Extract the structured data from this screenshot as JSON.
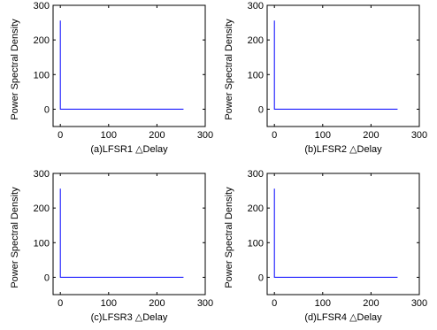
{
  "chart_data": [
    {
      "type": "line",
      "xlabel": "(a)LFSR1    △Delay",
      "ylabel": "Power Spectral Density",
      "xlim": [
        -15,
        300
      ],
      "ylim": [
        -50,
        300
      ],
      "xticks": [
        0,
        100,
        200,
        300
      ],
      "yticks": [
        0,
        100,
        200,
        300
      ],
      "grid": false,
      "series": [
        {
          "color": "#0000ff",
          "x": [
            0,
            0,
            1,
            255
          ],
          "y": [
            256,
            0,
            0,
            0
          ]
        }
      ]
    },
    {
      "type": "line",
      "xlabel": "(b)LFSR2    △Delay",
      "ylabel": "Power Spectral Density",
      "xlim": [
        -15,
        300
      ],
      "ylim": [
        -50,
        300
      ],
      "xticks": [
        0,
        100,
        200,
        300
      ],
      "yticks": [
        0,
        100,
        200,
        300
      ],
      "grid": false,
      "series": [
        {
          "color": "#0000ff",
          "x": [
            0,
            0,
            1,
            255
          ],
          "y": [
            256,
            0,
            0,
            0
          ]
        }
      ]
    },
    {
      "type": "line",
      "xlabel": "(c)LFSR3    △Delay",
      "ylabel": "Power Spectral Density",
      "xlim": [
        -15,
        300
      ],
      "ylim": [
        -50,
        300
      ],
      "xticks": [
        0,
        100,
        200,
        300
      ],
      "yticks": [
        0,
        100,
        200,
        300
      ],
      "grid": false,
      "series": [
        {
          "color": "#0000ff",
          "x": [
            0,
            0,
            1,
            255
          ],
          "y": [
            256,
            0,
            0,
            0
          ]
        }
      ]
    },
    {
      "type": "line",
      "xlabel": "(d)LFSR4    △Delay",
      "ylabel": "Power Spectral Density",
      "xlim": [
        -15,
        300
      ],
      "ylim": [
        -50,
        300
      ],
      "xticks": [
        0,
        100,
        200,
        300
      ],
      "yticks": [
        0,
        100,
        200,
        300
      ],
      "grid": false,
      "series": [
        {
          "color": "#0000ff",
          "x": [
            0,
            0,
            1,
            255
          ],
          "y": [
            256,
            0,
            0,
            0
          ]
        }
      ]
    }
  ]
}
